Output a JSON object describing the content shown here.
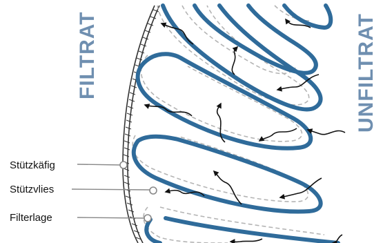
{
  "labels": {
    "filtrat": "FILTRAT",
    "unfiltrat": "UNFILTRAT",
    "stuetzkaefig": "Stützkäfig",
    "stuetzvlies": "Stützvlies",
    "filterlage": "Filterlage"
  },
  "colors": {
    "pleat_blue": "#2f6b9a",
    "label_blue": "#6f8fb0",
    "dashed_gray": "#b4b4b4",
    "flow_black": "#111111",
    "callout_gray": "#888888"
  }
}
